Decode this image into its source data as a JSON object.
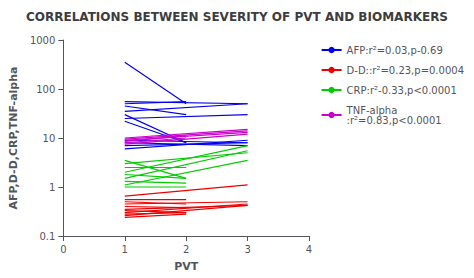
{
  "chart_data": {
    "type": "line",
    "title": "CORRELATIONS BETWEEN SEVERITY OF PVT AND BIOMARKERS",
    "x_label": "PVT",
    "y_label": "AFP,D-D,CRP,TNF-alpha",
    "log": "y",
    "grid": false,
    "legend": "right",
    "xlim": [
      0,
      4
    ],
    "xticks": [
      0,
      1,
      2,
      3,
      4
    ],
    "ylim": [
      0.1,
      1000
    ],
    "yticks": [
      0.1,
      1,
      10,
      100,
      1000
    ],
    "series": [
      {
        "name": "AFP:r²=0.03,p-0.69",
        "color": "#0000EE",
        "segments": [
          {
            "x": [
              1,
              2
            ],
            "values": [
              350,
              50
            ]
          },
          {
            "x": [
              1,
              3
            ],
            "values": [
              55,
              50
            ]
          },
          {
            "x": [
              1,
              2
            ],
            "values": [
              50,
              55
            ]
          },
          {
            "x": [
              1,
              2
            ],
            "values": [
              45,
              30
            ]
          },
          {
            "x": [
              1,
              3
            ],
            "values": [
              35,
              50
            ]
          },
          {
            "x": [
              1,
              2
            ],
            "values": [
              30,
              8
            ]
          },
          {
            "x": [
              1,
              3
            ],
            "values": [
              25,
              30
            ]
          },
          {
            "x": [
              1,
              2
            ],
            "values": [
              22,
              8
            ]
          },
          {
            "x": [
              1,
              3
            ],
            "values": [
              9,
              8
            ]
          },
          {
            "x": [
              1,
              3
            ],
            "values": [
              8,
              7
            ]
          },
          {
            "x": [
              1,
              3
            ],
            "values": [
              7,
              8
            ]
          },
          {
            "x": [
              1,
              3
            ],
            "values": [
              6,
              9
            ]
          }
        ]
      },
      {
        "name": "D-D::r²=0.23,p=0.0004",
        "color": "#EE0000",
        "segments": [
          {
            "x": [
              1,
              3
            ],
            "values": [
              0.65,
              1.1
            ]
          },
          {
            "x": [
              1,
              2
            ],
            "values": [
              0.55,
              0.55
            ]
          },
          {
            "x": [
              1,
              2
            ],
            "values": [
              0.5,
              0.45
            ]
          },
          {
            "x": [
              1,
              3
            ],
            "values": [
              0.45,
              0.5
            ]
          },
          {
            "x": [
              1,
              2
            ],
            "values": [
              0.4,
              0.38
            ]
          },
          {
            "x": [
              1,
              3
            ],
            "values": [
              0.35,
              0.42
            ]
          },
          {
            "x": [
              1,
              2
            ],
            "values": [
              0.33,
              0.3
            ]
          },
          {
            "x": [
              1,
              3
            ],
            "values": [
              0.3,
              0.45
            ]
          },
          {
            "x": [
              1,
              2
            ],
            "values": [
              0.28,
              0.3
            ]
          },
          {
            "x": [
              1,
              3
            ],
            "values": [
              0.26,
              0.42
            ]
          },
          {
            "x": [
              1,
              2
            ],
            "values": [
              0.24,
              0.28
            ]
          }
        ]
      },
      {
        "name": "CRP:r²-0.33,p<0.0001",
        "color": "#00CC00",
        "segments": [
          {
            "x": [
              1,
              2
            ],
            "values": [
              3.5,
              1.5
            ]
          },
          {
            "x": [
              1,
              3
            ],
            "values": [
              3.0,
              5.0
            ]
          },
          {
            "x": [
              1,
              2
            ],
            "values": [
              2.5,
              2.5
            ]
          },
          {
            "x": [
              1,
              3
            ],
            "values": [
              2.0,
              7.0
            ]
          },
          {
            "x": [
              1,
              2
            ],
            "values": [
              1.8,
              1.5
            ]
          },
          {
            "x": [
              1,
              3
            ],
            "values": [
              1.5,
              5.5
            ]
          },
          {
            "x": [
              1,
              2
            ],
            "values": [
              1.3,
              1.2
            ]
          },
          {
            "x": [
              1,
              3
            ],
            "values": [
              1.1,
              3.5
            ]
          },
          {
            "x": [
              1,
              2
            ],
            "values": [
              1.0,
              1.0
            ]
          }
        ]
      },
      {
        "name": "TNF-alpha\n:r²=0.83,p<0.0001",
        "color": "#CC00CC",
        "segments": [
          {
            "x": [
              1,
              3
            ],
            "values": [
              10.0,
              15.0
            ]
          },
          {
            "x": [
              1,
              3
            ],
            "values": [
              9.5,
              14.0
            ]
          },
          {
            "x": [
              1,
              3
            ],
            "values": [
              9.0,
              13.0
            ]
          },
          {
            "x": [
              1,
              2
            ],
            "values": [
              8.5,
              11.0
            ]
          },
          {
            "x": [
              1,
              2
            ],
            "values": [
              8.0,
              10.0
            ]
          },
          {
            "x": [
              1,
              3
            ],
            "values": [
              7.5,
              12.0
            ]
          }
        ]
      }
    ]
  }
}
